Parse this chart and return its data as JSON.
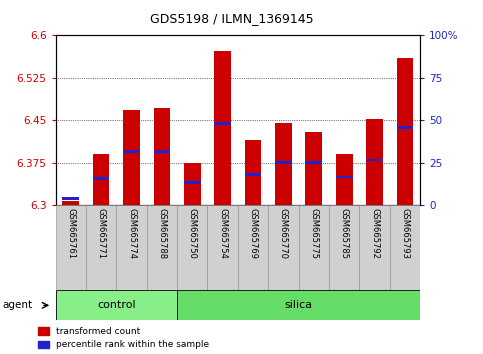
{
  "title": "GDS5198 / ILMN_1369145",
  "samples": [
    "GSM665761",
    "GSM665771",
    "GSM665774",
    "GSM665788",
    "GSM665750",
    "GSM665754",
    "GSM665769",
    "GSM665770",
    "GSM665775",
    "GSM665785",
    "GSM665792",
    "GSM665793"
  ],
  "groups": [
    "control",
    "control",
    "control",
    "control",
    "silica",
    "silica",
    "silica",
    "silica",
    "silica",
    "silica",
    "silica",
    "silica"
  ],
  "bar_values": [
    6.308,
    6.39,
    6.468,
    6.472,
    6.375,
    6.572,
    6.415,
    6.445,
    6.43,
    6.39,
    6.452,
    6.56
  ],
  "percentile_values": [
    6.312,
    6.348,
    6.395,
    6.395,
    6.34,
    6.445,
    6.355,
    6.375,
    6.375,
    6.35,
    6.38,
    6.437
  ],
  "ymin": 6.3,
  "ymax": 6.6,
  "yticks": [
    6.3,
    6.375,
    6.45,
    6.525,
    6.6
  ],
  "right_yticks": [
    0,
    25,
    50,
    75,
    100
  ],
  "bar_color": "#cc0000",
  "percentile_color": "#2222cc",
  "bar_width": 0.55,
  "control_color": "#88ee88",
  "silica_color": "#66dd66",
  "control_label": "control",
  "silica_label": "silica",
  "agent_label": "agent",
  "legend_transformed": "transformed count",
  "legend_percentile": "percentile rank within the sample",
  "background_color": "#ffffff",
  "tick_label_color_left": "#cc0000",
  "tick_label_color_right": "#2222cc",
  "n_control": 4,
  "n_silica": 8
}
